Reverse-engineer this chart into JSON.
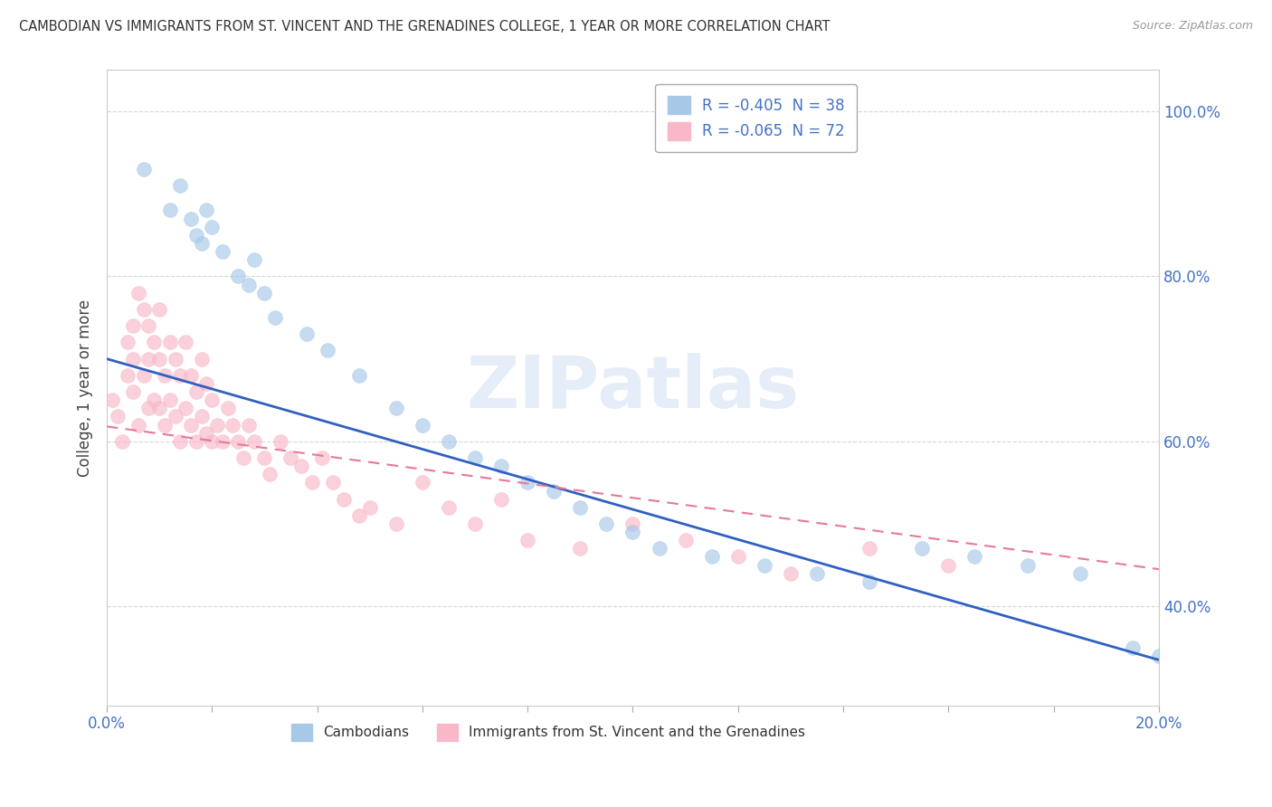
{
  "title": "CAMBODIAN VS IMMIGRANTS FROM ST. VINCENT AND THE GRENADINES COLLEGE, 1 YEAR OR MORE CORRELATION CHART",
  "source": "Source: ZipAtlas.com",
  "ylabel": "College, 1 year or more",
  "xlim": [
    0.0,
    0.2
  ],
  "ylim": [
    0.28,
    1.05
  ],
  "ytick_positions": [
    0.4,
    0.6,
    0.8,
    1.0
  ],
  "ytick_labels": [
    "40.0%",
    "60.0%",
    "80.0%",
    "100.0%"
  ],
  "legend1_label": "R = -0.405  N = 38",
  "legend2_label": "R = -0.065  N = 72",
  "legend1_color": "#a8c8e8",
  "legend2_color": "#f8b8c8",
  "line1_color": "#3060c0",
  "line2_color": "#e87898",
  "watermark": "ZIPatlas",
  "blue_x": [
    0.007,
    0.012,
    0.014,
    0.016,
    0.017,
    0.018,
    0.019,
    0.02,
    0.022,
    0.025,
    0.027,
    0.028,
    0.03,
    0.032,
    0.038,
    0.042,
    0.048,
    0.055,
    0.06,
    0.065,
    0.07,
    0.075,
    0.08,
    0.085,
    0.09,
    0.095,
    0.1,
    0.105,
    0.115,
    0.125,
    0.135,
    0.145,
    0.155,
    0.165,
    0.175,
    0.185,
    0.195,
    0.2
  ],
  "blue_y": [
    0.93,
    0.88,
    0.91,
    0.87,
    0.85,
    0.84,
    0.88,
    0.86,
    0.83,
    0.8,
    0.79,
    0.82,
    0.78,
    0.75,
    0.73,
    0.71,
    0.68,
    0.64,
    0.62,
    0.6,
    0.58,
    0.57,
    0.55,
    0.54,
    0.52,
    0.5,
    0.49,
    0.47,
    0.46,
    0.45,
    0.44,
    0.43,
    0.47,
    0.46,
    0.45,
    0.44,
    0.35,
    0.34
  ],
  "pink_x": [
    0.001,
    0.002,
    0.003,
    0.004,
    0.004,
    0.005,
    0.005,
    0.005,
    0.006,
    0.006,
    0.007,
    0.007,
    0.008,
    0.008,
    0.008,
    0.009,
    0.009,
    0.01,
    0.01,
    0.01,
    0.011,
    0.011,
    0.012,
    0.012,
    0.013,
    0.013,
    0.014,
    0.014,
    0.015,
    0.015,
    0.016,
    0.016,
    0.017,
    0.017,
    0.018,
    0.018,
    0.019,
    0.019,
    0.02,
    0.02,
    0.021,
    0.022,
    0.023,
    0.024,
    0.025,
    0.026,
    0.027,
    0.028,
    0.03,
    0.031,
    0.033,
    0.035,
    0.037,
    0.039,
    0.041,
    0.043,
    0.045,
    0.048,
    0.05,
    0.055,
    0.06,
    0.065,
    0.07,
    0.075,
    0.08,
    0.09,
    0.1,
    0.11,
    0.12,
    0.13,
    0.145,
    0.16
  ],
  "pink_y": [
    0.65,
    0.63,
    0.6,
    0.68,
    0.72,
    0.74,
    0.7,
    0.66,
    0.78,
    0.62,
    0.76,
    0.68,
    0.74,
    0.7,
    0.64,
    0.72,
    0.65,
    0.76,
    0.7,
    0.64,
    0.68,
    0.62,
    0.72,
    0.65,
    0.7,
    0.63,
    0.68,
    0.6,
    0.72,
    0.64,
    0.68,
    0.62,
    0.66,
    0.6,
    0.7,
    0.63,
    0.67,
    0.61,
    0.65,
    0.6,
    0.62,
    0.6,
    0.64,
    0.62,
    0.6,
    0.58,
    0.62,
    0.6,
    0.58,
    0.56,
    0.6,
    0.58,
    0.57,
    0.55,
    0.58,
    0.55,
    0.53,
    0.51,
    0.52,
    0.5,
    0.55,
    0.52,
    0.5,
    0.53,
    0.48,
    0.47,
    0.5,
    0.48,
    0.46,
    0.44,
    0.47,
    0.45
  ],
  "blue_line_x": [
    0.0,
    0.2
  ],
  "blue_line_y": [
    0.7,
    0.335
  ],
  "pink_line_x": [
    0.0,
    0.2
  ],
  "pink_line_y": [
    0.618,
    0.445
  ]
}
